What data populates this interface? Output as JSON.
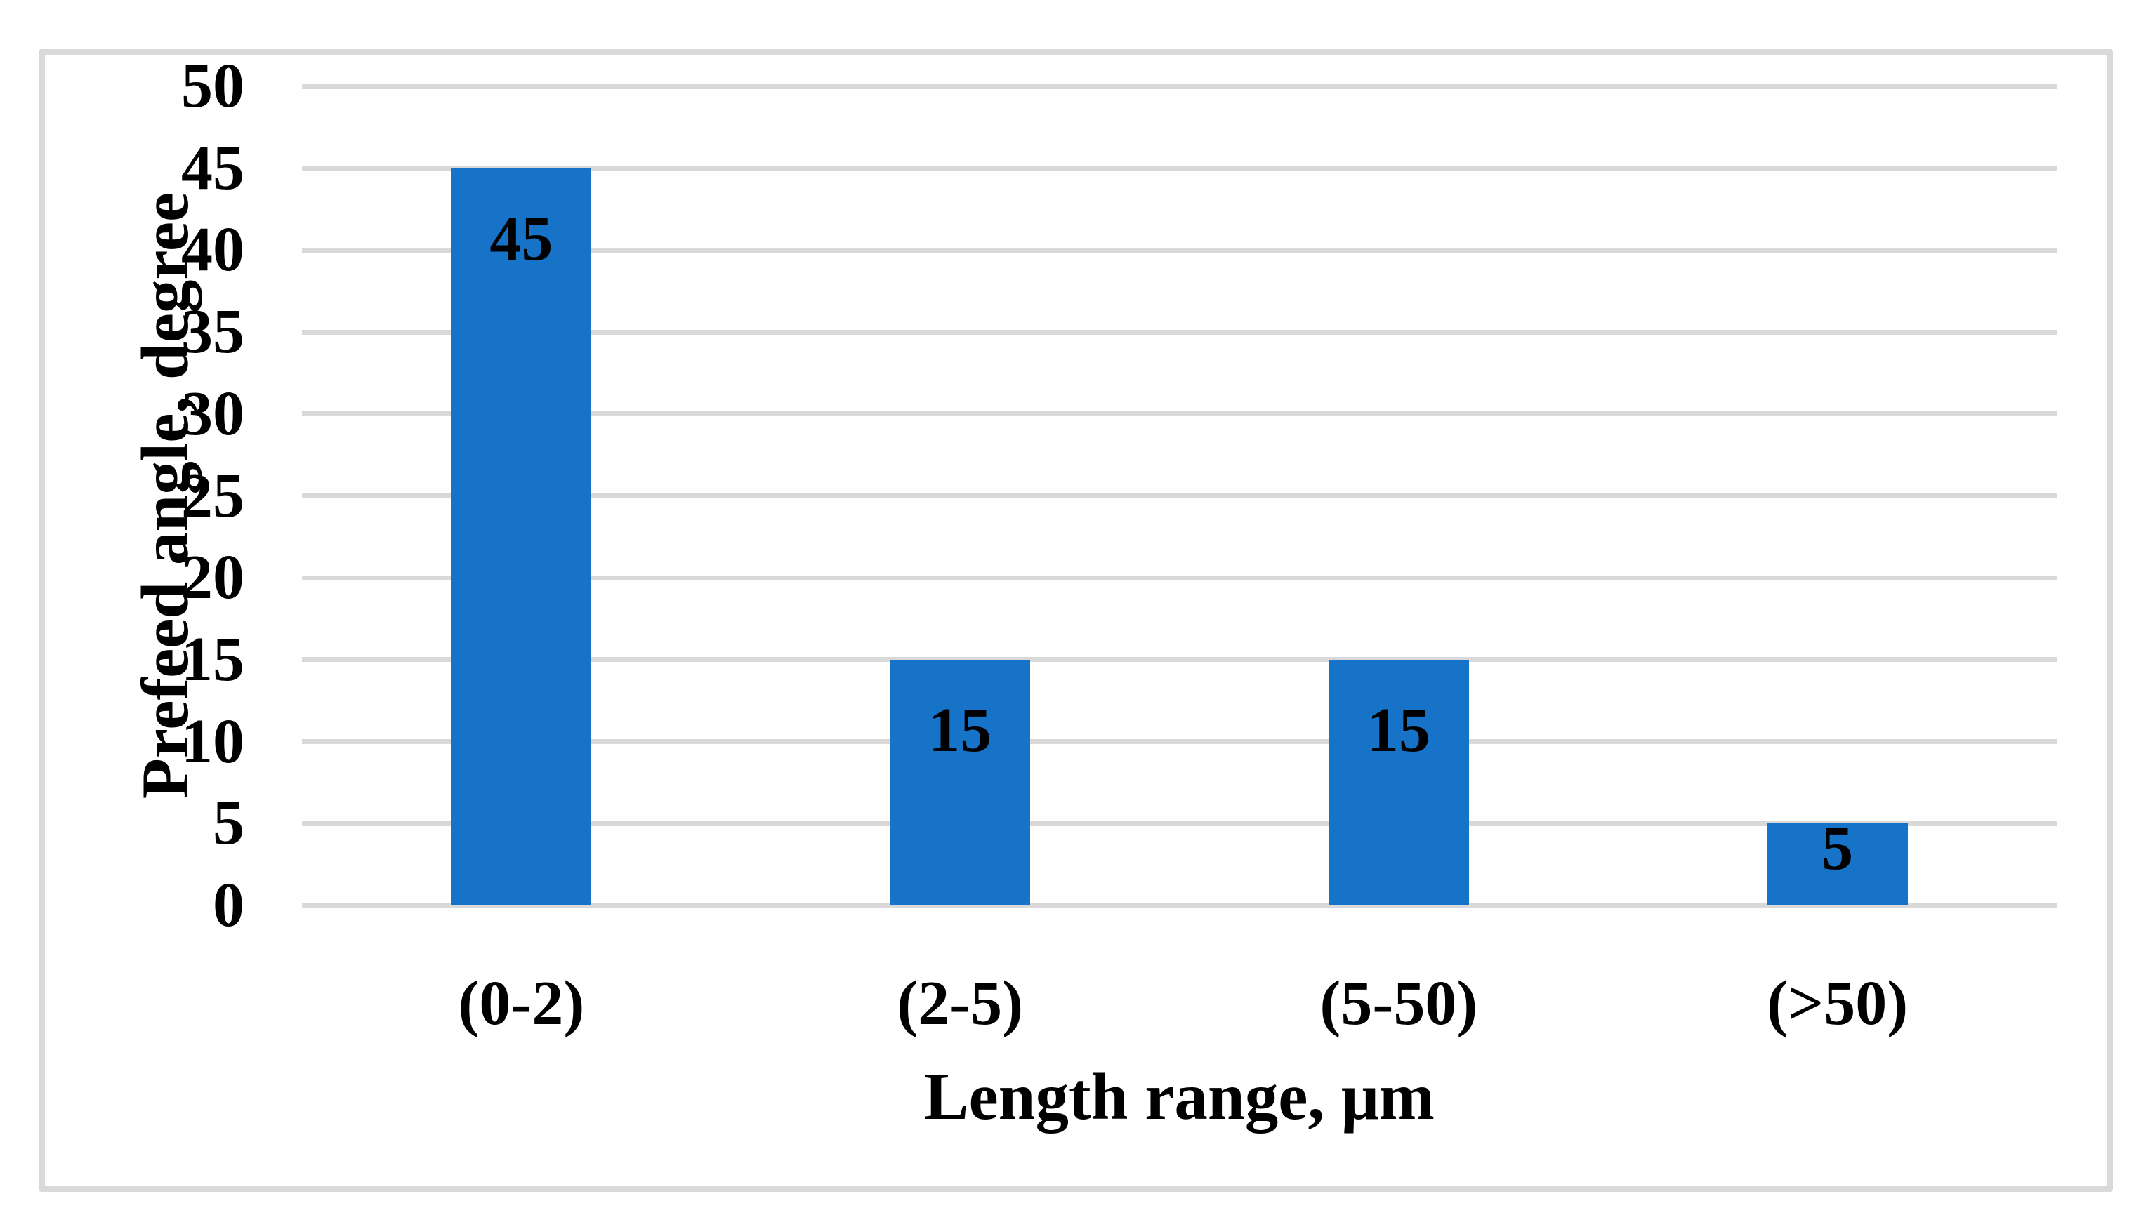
{
  "chart_data": {
    "type": "bar",
    "title": "",
    "categories": [
      "(0-2)",
      "(2-5)",
      "(5-50)",
      "(>50)"
    ],
    "values": [
      45,
      15,
      15,
      5
    ],
    "data_labels": [
      "45",
      "15",
      "15",
      "5"
    ],
    "xlabel": "Length range, μm",
    "ylabel": "Prefeed angle, degree",
    "ylim": [
      0,
      50
    ],
    "yticks": [
      0,
      5,
      10,
      15,
      20,
      25,
      30,
      35,
      40,
      45,
      50
    ],
    "grid": "horizontal",
    "legend": "none",
    "bar_color": "#1673c8",
    "gridline_color": "#d9d9d9",
    "frame_color": "#d9d9d9",
    "text_color": "#000000"
  }
}
